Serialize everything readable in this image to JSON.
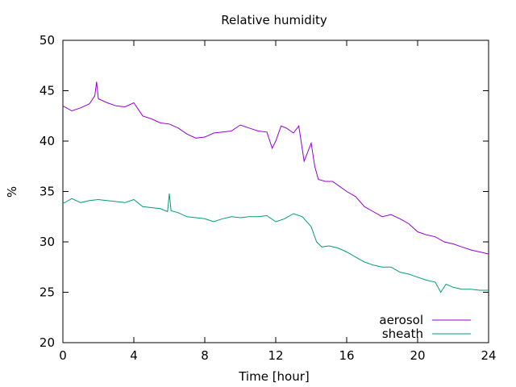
{
  "chart_data": {
    "type": "line",
    "title": "Relative humidity",
    "xlabel": "Time [hour]",
    "ylabel": "%",
    "xlim": [
      0,
      24
    ],
    "ylim": [
      20,
      50
    ],
    "xticks": [
      0,
      4,
      8,
      12,
      16,
      20,
      24
    ],
    "yticks": [
      20,
      25,
      30,
      35,
      40,
      45,
      50
    ],
    "grid": false,
    "legend_position": "bottom-right",
    "series": [
      {
        "name": "aerosol",
        "color": "#9400d3",
        "x": [
          0,
          0.5,
          1,
          1.5,
          1.8,
          1.9,
          2,
          2.5,
          3,
          3.5,
          4,
          4.5,
          5,
          5.5,
          6,
          6.5,
          7,
          7.5,
          8,
          8.5,
          9,
          9.5,
          10,
          10.5,
          11,
          11.5,
          11.8,
          12,
          12.3,
          12.6,
          13,
          13.3,
          13.6,
          14,
          14.2,
          14.4,
          14.8,
          15.2,
          15.6,
          16,
          16.5,
          17,
          17.5,
          18,
          18.5,
          19,
          19.5,
          20,
          20.5,
          21,
          21.5,
          22,
          22.5,
          23,
          23.5,
          24
        ],
        "y": [
          43.5,
          43.0,
          43.3,
          43.7,
          44.5,
          45.9,
          44.2,
          43.8,
          43.5,
          43.4,
          43.8,
          42.5,
          42.2,
          41.8,
          41.7,
          41.3,
          40.7,
          40.3,
          40.4,
          40.8,
          40.9,
          41.0,
          41.6,
          41.3,
          41.0,
          40.9,
          39.3,
          40.0,
          41.5,
          41.3,
          40.8,
          41.5,
          38.0,
          39.8,
          37.5,
          36.2,
          36.0,
          36.0,
          35.5,
          35.0,
          34.5,
          33.5,
          33.0,
          32.5,
          32.7,
          32.3,
          31.8,
          31.0,
          30.7,
          30.5,
          30.0,
          29.8,
          29.5,
          29.2,
          29.0,
          28.8
        ]
      },
      {
        "name": "sheath",
        "color": "#009e73",
        "x": [
          0,
          0.5,
          1,
          1.5,
          2,
          2.5,
          3,
          3.5,
          4,
          4.5,
          5,
          5.5,
          5.9,
          6,
          6.1,
          6.5,
          7,
          7.5,
          8,
          8.5,
          9,
          9.5,
          10,
          10.5,
          11,
          11.5,
          12,
          12.5,
          13,
          13.5,
          14,
          14.3,
          14.6,
          15,
          15.5,
          16,
          16.5,
          17,
          17.5,
          18,
          18.5,
          19,
          19.5,
          20,
          20.5,
          21,
          21.3,
          21.6,
          22,
          22.5,
          23,
          23.5,
          24
        ],
        "y": [
          33.8,
          34.3,
          33.9,
          34.1,
          34.2,
          34.1,
          34.0,
          33.9,
          34.2,
          33.5,
          33.4,
          33.3,
          33.0,
          34.8,
          33.1,
          32.9,
          32.5,
          32.4,
          32.3,
          32.0,
          32.3,
          32.5,
          32.4,
          32.5,
          32.5,
          32.6,
          32.0,
          32.3,
          32.8,
          32.5,
          31.5,
          30.0,
          29.5,
          29.6,
          29.4,
          29.0,
          28.5,
          28.0,
          27.7,
          27.5,
          27.5,
          27.0,
          26.8,
          26.5,
          26.2,
          26.0,
          25.0,
          25.8,
          25.5,
          25.3,
          25.3,
          25.2,
          25.2
        ]
      }
    ]
  }
}
